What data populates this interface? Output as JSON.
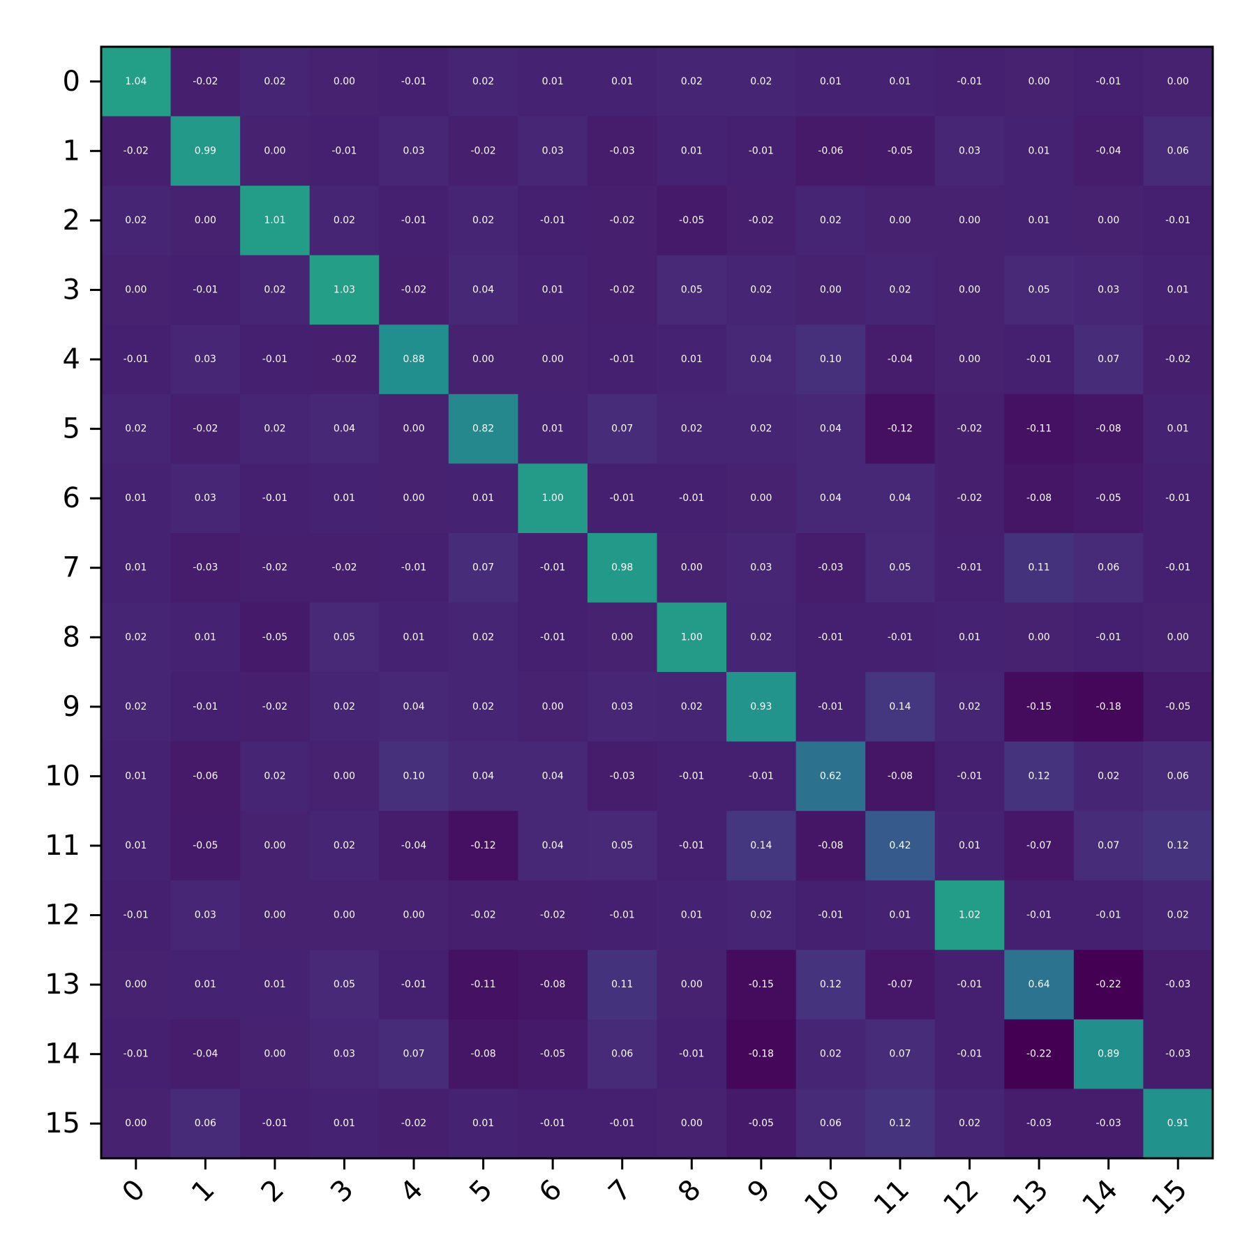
{
  "chart_data": {
    "type": "heatmap",
    "title": "",
    "xlabel": "",
    "ylabel": "",
    "x_categories": [
      "0",
      "1",
      "2",
      "3",
      "4",
      "5",
      "6",
      "7",
      "8",
      "9",
      "10",
      "11",
      "12",
      "13",
      "14",
      "15"
    ],
    "y_categories": [
      "0",
      "1",
      "2",
      "3",
      "4",
      "5",
      "6",
      "7",
      "8",
      "9",
      "10",
      "11",
      "12",
      "13",
      "14",
      "15"
    ],
    "colormap": "viridis",
    "vmin": -0.22,
    "vmax": 2.0,
    "grid": false,
    "annotations_format": "2 decimals",
    "values": [
      [
        1.04,
        -0.02,
        0.02,
        -0.0,
        -0.01,
        0.02,
        0.01,
        0.01,
        0.02,
        0.02,
        0.01,
        0.01,
        -0.01,
        0.0,
        -0.01,
        0.0
      ],
      [
        -0.02,
        0.99,
        -0.0,
        -0.01,
        0.03,
        -0.02,
        0.03,
        -0.03,
        0.01,
        -0.01,
        -0.06,
        -0.05,
        0.03,
        0.01,
        -0.04,
        0.06
      ],
      [
        0.02,
        -0.0,
        1.01,
        0.02,
        -0.01,
        0.02,
        -0.01,
        -0.02,
        -0.05,
        -0.02,
        0.02,
        -0.0,
        -0.0,
        0.01,
        0.0,
        -0.01
      ],
      [
        -0.0,
        -0.01,
        0.02,
        1.03,
        -0.02,
        0.04,
        0.01,
        -0.02,
        0.05,
        0.02,
        -0.0,
        0.02,
        -0.0,
        0.05,
        0.03,
        0.01
      ],
      [
        -0.01,
        0.03,
        -0.01,
        -0.02,
        0.88,
        -0.0,
        0.0,
        -0.01,
        0.01,
        0.04,
        0.1,
        -0.04,
        0.0,
        -0.01,
        0.07,
        -0.02
      ],
      [
        0.02,
        -0.02,
        0.02,
        0.04,
        -0.0,
        0.82,
        0.01,
        0.07,
        0.02,
        0.02,
        0.04,
        -0.12,
        -0.02,
        -0.11,
        -0.08,
        0.01
      ],
      [
        0.01,
        0.03,
        -0.01,
        0.01,
        0.0,
        0.01,
        1.0,
        -0.01,
        -0.01,
        0.0,
        0.04,
        0.04,
        -0.02,
        -0.08,
        -0.05,
        -0.01
      ],
      [
        0.01,
        -0.03,
        -0.02,
        -0.02,
        -0.01,
        0.07,
        -0.01,
        0.98,
        -0.0,
        0.03,
        -0.03,
        0.05,
        -0.01,
        0.11,
        0.06,
        -0.01
      ],
      [
        0.02,
        0.01,
        -0.05,
        0.05,
        0.01,
        0.02,
        -0.01,
        -0.0,
        1.0,
        0.02,
        -0.01,
        -0.01,
        0.01,
        -0.0,
        -0.01,
        -0.0
      ],
      [
        0.02,
        -0.01,
        -0.02,
        0.02,
        0.04,
        0.02,
        0.0,
        0.03,
        0.02,
        0.93,
        -0.01,
        0.14,
        0.02,
        -0.15,
        -0.18,
        -0.05
      ],
      [
        0.01,
        -0.06,
        0.02,
        -0.0,
        0.1,
        0.04,
        0.04,
        -0.03,
        -0.01,
        -0.01,
        0.62,
        -0.08,
        -0.01,
        0.12,
        0.02,
        0.06
      ],
      [
        0.01,
        -0.05,
        -0.0,
        0.02,
        -0.04,
        -0.12,
        0.04,
        0.05,
        -0.01,
        0.14,
        -0.08,
        0.42,
        0.01,
        -0.07,
        0.07,
        0.12
      ],
      [
        -0.01,
        0.03,
        -0.0,
        -0.0,
        0.0,
        -0.02,
        -0.02,
        -0.01,
        0.01,
        0.02,
        -0.01,
        0.01,
        1.02,
        -0.01,
        -0.01,
        0.02
      ],
      [
        0.0,
        0.01,
        0.01,
        0.05,
        -0.01,
        -0.11,
        -0.08,
        0.11,
        -0.0,
        -0.15,
        0.12,
        -0.07,
        -0.01,
        0.64,
        -0.22,
        -0.03
      ],
      [
        -0.01,
        -0.04,
        0.0,
        0.03,
        0.07,
        -0.08,
        -0.05,
        0.06,
        -0.01,
        -0.18,
        0.02,
        0.07,
        -0.01,
        -0.22,
        0.89,
        -0.03
      ],
      [
        0.0,
        0.06,
        -0.01,
        0.01,
        -0.02,
        0.01,
        -0.01,
        -0.01,
        -0.0,
        -0.05,
        0.06,
        0.12,
        0.02,
        -0.03,
        -0.03,
        0.91
      ]
    ]
  }
}
